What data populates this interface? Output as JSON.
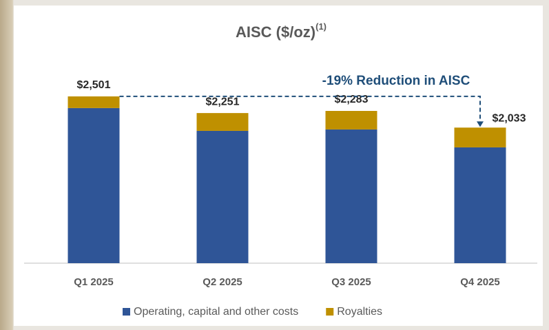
{
  "chart_data": {
    "type": "stacked_bar",
    "title": "AISC ($/oz)",
    "title_superscript": "(1)",
    "categories": [
      "Q1 2025",
      "Q2 2025",
      "Q3 2025",
      "Q4 2025"
    ],
    "series": [
      {
        "name": "Operating, capital and other costs",
        "color": "#2f5597",
        "values": [
          2326,
          1984,
          2005,
          1736
        ]
      },
      {
        "name": "Royalties",
        "color": "#bf9000",
        "values": [
          175,
          267,
          278,
          297
        ]
      }
    ],
    "totals": [
      2501,
      2251,
      2283,
      2033
    ],
    "total_labels": [
      "$2,501",
      "$2,251",
      "$2,283",
      "$2,033"
    ],
    "annotation": "-19% Reduction in AISC"
  }
}
